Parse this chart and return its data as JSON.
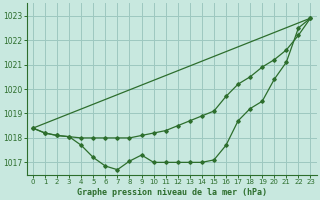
{
  "background_color": "#c8e8df",
  "grid_color": "#9dc8c0",
  "line_color": "#2d6e2d",
  "title": "Graphe pression niveau de la mer (hPa)",
  "xlim": [
    -0.5,
    23.5
  ],
  "ylim": [
    1016.5,
    1023.5
  ],
  "yticks": [
    1017,
    1018,
    1019,
    1020,
    1021,
    1022,
    1023
  ],
  "xticks": [
    0,
    1,
    2,
    3,
    4,
    5,
    6,
    7,
    8,
    9,
    10,
    11,
    12,
    13,
    14,
    15,
    16,
    17,
    18,
    19,
    20,
    21,
    22,
    23
  ],
  "series1_x": [
    0,
    1,
    2,
    3,
    4,
    5,
    6,
    7,
    8,
    9,
    10,
    11,
    12,
    13,
    14,
    15,
    16,
    17,
    18,
    19,
    20,
    21,
    22,
    23
  ],
  "series1_y": [
    1018.4,
    1018.2,
    1018.1,
    1018.05,
    1017.7,
    1017.2,
    1016.85,
    1016.7,
    1017.05,
    1017.3,
    1017.0,
    1017.0,
    1017.0,
    1017.0,
    1017.0,
    1017.1,
    1017.7,
    1018.7,
    1019.2,
    1019.5,
    1020.4,
    1021.1,
    1022.5,
    1022.9
  ],
  "series2_x": [
    0,
    1,
    2,
    3,
    4,
    5,
    6,
    7,
    8,
    9,
    10,
    11,
    12,
    13,
    14,
    15,
    16,
    17,
    18,
    19,
    20,
    21,
    22,
    23
  ],
  "series2_y": [
    1018.4,
    1018.2,
    1018.1,
    1018.05,
    1018.0,
    1018.0,
    1018.0,
    1018.0,
    1018.0,
    1018.1,
    1018.2,
    1018.3,
    1018.5,
    1018.7,
    1018.9,
    1019.1,
    1019.7,
    1020.2,
    1020.5,
    1020.9,
    1021.2,
    1021.6,
    1022.2,
    1022.9
  ],
  "series3_x": [
    0,
    23
  ],
  "series3_y": [
    1018.4,
    1022.9
  ]
}
